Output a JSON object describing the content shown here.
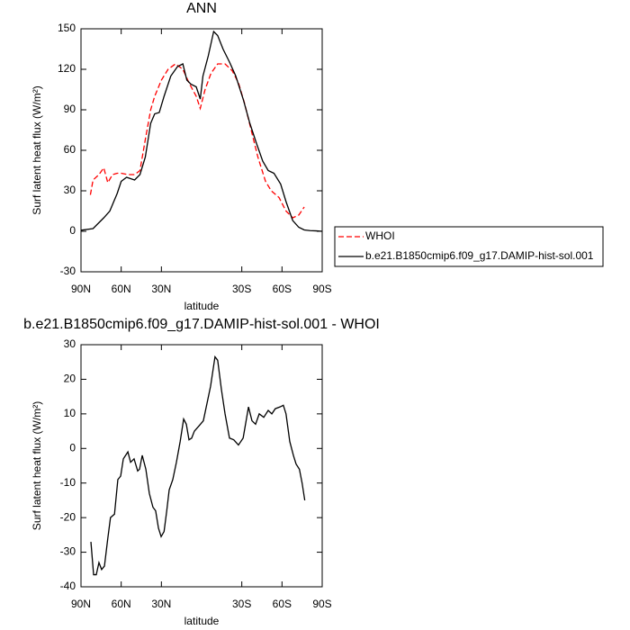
{
  "chart_data": [
    {
      "type": "line",
      "title": "ANN",
      "xlabel": "latitude",
      "ylabel": "Surf latent heat flux (W/m²)",
      "xlim": [
        90,
        -90
      ],
      "ylim": [
        -30,
        150
      ],
      "xticks": [
        {
          "value": 90,
          "label": "90N"
        },
        {
          "value": 60,
          "label": "60N"
        },
        {
          "value": 30,
          "label": "30N"
        },
        {
          "value": -30,
          "label": "30S"
        },
        {
          "value": -60,
          "label": "60S"
        },
        {
          "value": -90,
          "label": "90S"
        }
      ],
      "yticks": [
        -30,
        0,
        30,
        60,
        90,
        120,
        150
      ],
      "legend": "right",
      "series": [
        {
          "name": "WHOI",
          "color": "#ff0000",
          "style": "dashed",
          "x": [
            83,
            81,
            76.6,
            73,
            70,
            66.5,
            63,
            60,
            55,
            50,
            46,
            42,
            38,
            35,
            30,
            25,
            19.5,
            14,
            9.4,
            4,
            1,
            -2.6,
            -7,
            -12,
            -17.5,
            -22.8,
            -27.5,
            -32,
            -37,
            -42,
            -47.7,
            -52,
            -57.8,
            -63,
            -68,
            -72.5,
            -76.6
          ],
          "values": [
            27,
            38,
            42,
            47,
            36,
            42,
            43,
            43,
            42,
            42,
            45,
            68,
            90,
            100,
            112,
            120,
            124,
            120,
            110,
            100,
            91,
            105,
            117,
            124,
            124,
            119,
            110,
            95,
            75,
            55,
            37,
            30,
            25,
            15,
            10,
            12,
            18
          ]
        },
        {
          "name": "b.e21.B1850cmip6.f09_g17.DAMIP-hist-sol.001",
          "color": "#000000",
          "style": "solid",
          "x": [
            90,
            81,
            73,
            68.5,
            63,
            60,
            56,
            50,
            46,
            42,
            38,
            35,
            31.6,
            28,
            23,
            18,
            14,
            11,
            8,
            4,
            1,
            -1,
            -5,
            -9,
            -12,
            -16,
            -21,
            -25.5,
            -31,
            -36,
            -41,
            -45.6,
            -49.7,
            -54,
            -59,
            -63,
            -68,
            -72.5,
            -76.6,
            -81,
            -86,
            -90
          ],
          "values": [
            0.8,
            2,
            10,
            15,
            28,
            37,
            40,
            38,
            42,
            55,
            80,
            87,
            88,
            100,
            115,
            122,
            124,
            112,
            109,
            107,
            98,
            115,
            130,
            148,
            145,
            135,
            125,
            115,
            98,
            80,
            65,
            52,
            45,
            43,
            35,
            22,
            8,
            3,
            1,
            0.5,
            0.3,
            0
          ]
        }
      ]
    },
    {
      "type": "line",
      "title": "b.e21.B1850cmip6.f09_g17.DAMIP-hist-sol.001 - WHOI",
      "xlabel": "latitude",
      "ylabel": "Surf latent heat flux (W/m²)",
      "xlim": [
        90,
        -90
      ],
      "ylim": [
        -40,
        30
      ],
      "xticks": [
        {
          "value": 90,
          "label": "90N"
        },
        {
          "value": 60,
          "label": "60N"
        },
        {
          "value": 30,
          "label": "30N"
        },
        {
          "value": -30,
          "label": "30S"
        },
        {
          "value": -60,
          "label": "60S"
        },
        {
          "value": -90,
          "label": "90S"
        }
      ],
      "yticks": [
        -40,
        -30,
        -20,
        -10,
        0,
        10,
        20,
        30
      ],
      "series": [
        {
          "color": "#000000",
          "style": "solid",
          "x": [
            82.6,
            80.6,
            78.6,
            76.6,
            74.6,
            72.5,
            70,
            68,
            65,
            62.5,
            60.4,
            58.4,
            55,
            53,
            50.4,
            47.7,
            46.3,
            44.3,
            41.6,
            39,
            36.3,
            34.3,
            32.2,
            30.2,
            28,
            26,
            24.2,
            21.5,
            18.8,
            16,
            13.4,
            11.4,
            9.4,
            7.4,
            5.4,
            2,
            -1.3,
            -4,
            -6.7,
            -10,
            -12,
            -14.8,
            -17.5,
            -20.8,
            -24,
            -27.5,
            -31,
            -35,
            -37.6,
            -40.3,
            -43,
            -46.4,
            -49.7,
            -52.4,
            -55,
            -58.5,
            -61,
            -63,
            -65.8,
            -68.5,
            -70.5,
            -73,
            -75,
            -77
          ],
          "values": [
            -27,
            -36.5,
            -36.5,
            -33,
            -35,
            -34,
            -26,
            -20,
            -19,
            -9,
            -8,
            -3,
            -1,
            -4,
            -3,
            -6.5,
            -6,
            -2,
            -6,
            -13,
            -17,
            -18,
            -23,
            -25.5,
            -24,
            -18,
            -12,
            -9,
            -4,
            2,
            8.5,
            7,
            2.5,
            3,
            5,
            6.5,
            8,
            13,
            18,
            26.5,
            25.5,
            17,
            10,
            3,
            2.5,
            1,
            3,
            12,
            8,
            7,
            10,
            9,
            11,
            10,
            11.5,
            12,
            12.5,
            10,
            2,
            -2,
            -4.5,
            -6,
            -10,
            -15
          ]
        }
      ]
    }
  ]
}
